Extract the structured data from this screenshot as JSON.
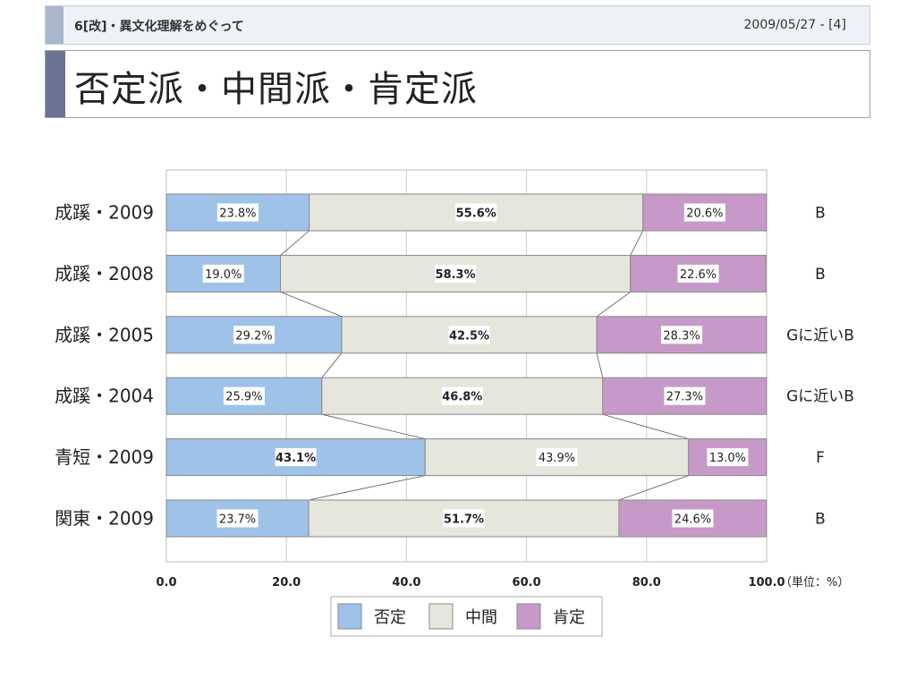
{
  "header": {
    "left": "6[改]・異文化理解をめぐって",
    "right": "2009/05/27 - [4]"
  },
  "title": "否定派・中間派・肯定派",
  "colors": {
    "negative": "#9fc3e8",
    "middle": "#e6e6dc",
    "positive": "#c799c9",
    "grid": "#cccccc",
    "border": "#888888"
  },
  "chart_data": {
    "type": "bar",
    "orientation": "horizontal",
    "stacked": true,
    "categories": [
      "成蹊・2009",
      "成蹊・2008",
      "成蹊・2005",
      "成蹊・2004",
      "青短・2009",
      "関東・2009"
    ],
    "series": [
      {
        "name": "否定",
        "values": [
          23.8,
          19.0,
          29.2,
          25.9,
          43.1,
          23.7
        ],
        "value_labels": [
          "23.8%",
          "19.0%",
          "29.2%",
          "25.9%",
          "43.1%",
          "23.7%"
        ]
      },
      {
        "name": "中間",
        "values": [
          55.6,
          58.3,
          42.5,
          46.8,
          43.9,
          51.7
        ],
        "value_labels": [
          "55.6%",
          "58.3%",
          "42.5%",
          "46.8%",
          "43.9%",
          "51.7%"
        ]
      },
      {
        "name": "肯定",
        "values": [
          20.6,
          22.6,
          28.3,
          27.3,
          13.0,
          24.6
        ],
        "value_labels": [
          "20.6%",
          "22.6%",
          "28.3%",
          "27.3%",
          "13.0%",
          "24.6%"
        ]
      }
    ],
    "bold_labels": [
      [
        0,
        1
      ],
      [
        1,
        1
      ],
      [
        2,
        1
      ],
      [
        3,
        1
      ],
      [
        4,
        0
      ],
      [
        5,
        1
      ]
    ],
    "right_labels": [
      "B",
      "B",
      "Gに近いB",
      "Gに近いB",
      "F",
      "B"
    ],
    "xticks": [
      "0.0",
      "20.0",
      "40.0",
      "60.0",
      "80.0",
      "100.0"
    ],
    "xlim": [
      0,
      100
    ],
    "unit": "（単位：%）",
    "grid": true,
    "connector_lines": true,
    "legend": {
      "position": "bottom",
      "items": [
        "否定",
        "中間",
        "肯定"
      ]
    }
  }
}
